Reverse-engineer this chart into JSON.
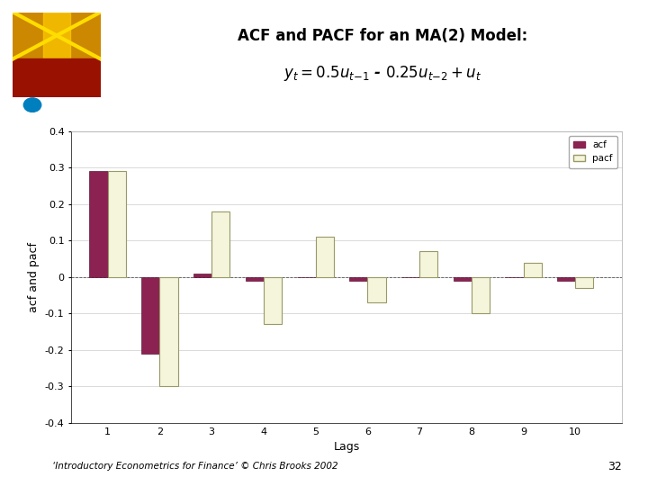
{
  "title_line1": "ACF and PACF for an MA(2) Model:",
  "title_line2": "y_t = 0.5u_{t-1} - 0.25u_{t-2} + u_t",
  "lags": [
    1,
    2,
    3,
    4,
    5,
    6,
    7,
    8,
    9,
    10
  ],
  "acf": [
    0.29,
    -0.21,
    0.01,
    -0.01,
    0.0,
    -0.01,
    0.0,
    -0.01,
    0.0,
    -0.01
  ],
  "pacf": [
    0.29,
    -0.3,
    0.18,
    -0.13,
    0.11,
    -0.07,
    0.07,
    -0.1,
    0.04,
    -0.03
  ],
  "acf_color": "#8B2252",
  "pacf_color": "#F5F5DC",
  "pacf_edge_color": "#999966",
  "ylabel": "acf and pacf",
  "xlabel": "Lags",
  "ylim": [
    -0.4,
    0.4
  ],
  "yticks": [
    -0.4,
    -0.3,
    -0.2,
    -0.1,
    0,
    0.1,
    0.2,
    0.3,
    0.4
  ],
  "background_color": "#ffffff",
  "plot_bg_color": "#ffffff",
  "grid_color": "#cccccc",
  "footer_text": "‘Introductory Econometrics for Finance’ © Chris Brooks 2002",
  "page_number": "32",
  "bar_width": 0.35,
  "legend_labels": [
    "acf",
    "pacf"
  ],
  "cyan_color": "#00BFFF",
  "circle_color": "#007FBF"
}
